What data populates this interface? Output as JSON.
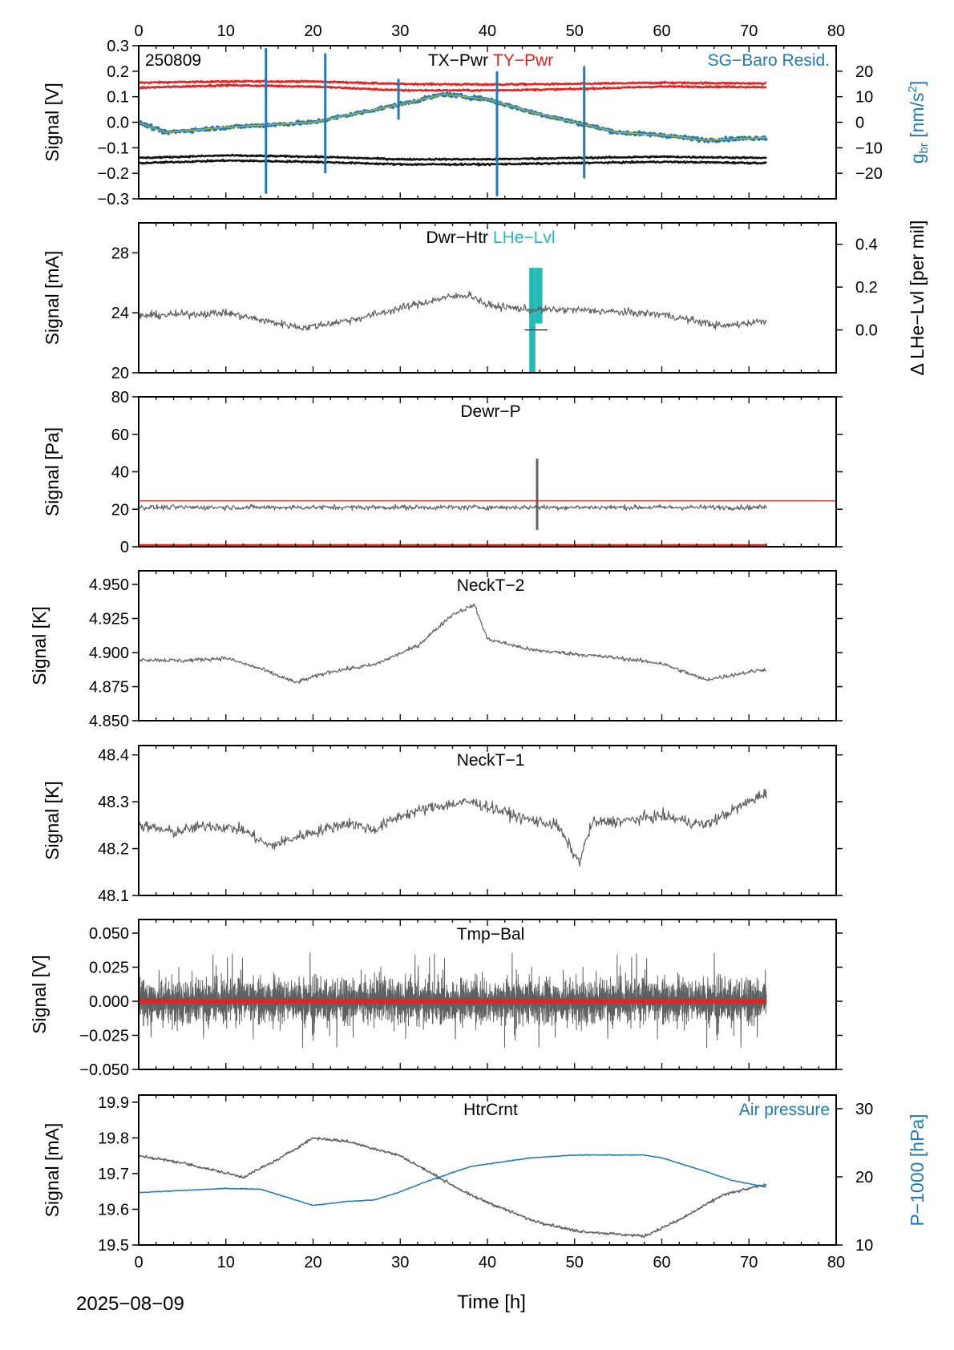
{
  "figure": {
    "date_label": "2025−08−09",
    "xlabel": "Time [h]",
    "xlim": [
      0,
      80
    ],
    "xticks": [
      0,
      10,
      20,
      30,
      40,
      50,
      60,
      70,
      80
    ]
  },
  "chart_data": [
    {
      "type": "line",
      "panel": "tx-ty-pwr",
      "corner_text": "250809",
      "titles": [
        {
          "text": "TX−Pwr",
          "color": "#000000"
        },
        {
          "text": "TY−Pwr",
          "color": "#e8201e"
        }
      ],
      "right_title": {
        "text": "SG−Baro Resid.",
        "color": "#1f7ab8"
      },
      "ylabel": "Signal [V]",
      "ylim": [
        -0.3,
        0.3
      ],
      "yticks": [
        -0.3,
        -0.2,
        -0.1,
        0.0,
        0.1,
        0.2,
        0.3
      ],
      "ytick_labels": [
        "−0.3",
        "−0.2",
        "−0.1",
        "0.0",
        "0.1",
        "0.2",
        "0.3"
      ],
      "right_axis": {
        "label_main": "g",
        "label_sub": "br",
        "label_tail": " [nm/s",
        "label_sup": "2",
        "label_end": "]",
        "color": "#1f7ab8",
        "ylim": [
          -30,
          30
        ],
        "yticks": [
          -20,
          -10,
          0,
          10,
          20
        ],
        "ytick_labels": [
          "−20",
          "−10",
          "0",
          "10",
          "20"
        ]
      },
      "series": [
        {
          "axis": "left",
          "color": "#e8201e",
          "width": 2.5,
          "noise": 0.003,
          "x": [
            0,
            10,
            20,
            30,
            40,
            50,
            60,
            72
          ],
          "y": [
            0.155,
            0.16,
            0.16,
            0.15,
            0.148,
            0.15,
            0.155,
            0.152
          ]
        },
        {
          "axis": "left",
          "color": "#e8201e",
          "width": 2.5,
          "noise": 0.003,
          "x": [
            0,
            10,
            20,
            30,
            40,
            50,
            60,
            72
          ],
          "y": [
            0.135,
            0.145,
            0.14,
            0.125,
            0.125,
            0.13,
            0.14,
            0.138
          ]
        },
        {
          "axis": "left",
          "color": "#111111",
          "width": 2.5,
          "noise": 0.003,
          "x": [
            0,
            10,
            20,
            30,
            40,
            50,
            60,
            72
          ],
          "y": [
            -0.14,
            -0.13,
            -0.135,
            -0.145,
            -0.145,
            -0.14,
            -0.135,
            -0.14
          ]
        },
        {
          "axis": "left",
          "color": "#111111",
          "width": 2.5,
          "noise": 0.003,
          "x": [
            0,
            10,
            20,
            30,
            40,
            50,
            60,
            72
          ],
          "y": [
            -0.16,
            -0.15,
            -0.155,
            -0.165,
            -0.165,
            -0.16,
            -0.155,
            -0.16
          ]
        },
        {
          "axis": "right",
          "color": "#1f7ab8",
          "width": 3.5,
          "noise": 0.7,
          "x": [
            0,
            3,
            10,
            20,
            30,
            35,
            40,
            45,
            50,
            55,
            60,
            65,
            72
          ],
          "y": [
            0,
            -4,
            -2,
            0,
            7,
            11,
            9,
            4,
            0,
            -4,
            -5,
            -7,
            -6
          ]
        },
        {
          "axis": "right",
          "color": "#b9b82e",
          "width": 1.2,
          "noise": 0.2,
          "x": [
            0,
            3,
            10,
            20,
            30,
            35,
            40,
            45,
            50,
            55,
            60,
            65,
            72
          ],
          "y": [
            0,
            -4,
            -2,
            0,
            7,
            11,
            9,
            4,
            0,
            -4,
            -5,
            -7,
            -6
          ]
        }
      ],
      "spikes": [
        {
          "axis": "right",
          "color": "#1f7ab8",
          "x": 14.6,
          "y0": -28,
          "y1": 29
        },
        {
          "axis": "right",
          "color": "#1f7ab8",
          "x": 21.4,
          "y0": -20,
          "y1": 27
        },
        {
          "axis": "right",
          "color": "#1f7ab8",
          "x": 29.8,
          "y0": 1,
          "y1": 17
        },
        {
          "axis": "right",
          "color": "#1f7ab8",
          "x": 41.1,
          "y0": -29,
          "y1": 20
        },
        {
          "axis": "right",
          "color": "#1f7ab8",
          "x": 51.1,
          "y0": -22,
          "y1": 22
        }
      ]
    },
    {
      "type": "line",
      "panel": "dwr-htr",
      "titles": [
        {
          "text": "Dwr−Htr",
          "color": "#000000"
        },
        {
          "text": "LHe−Lvl",
          "color": "#22bbb8"
        }
      ],
      "ylabel": "Signal [mA]",
      "ylim": [
        20,
        30
      ],
      "yticks": [
        20,
        24,
        28
      ],
      "ytick_labels": [
        "20",
        "24",
        "28"
      ],
      "right_axis": {
        "label": "Δ LHe−Lvl [per mil]",
        "color": "#000000",
        "ylim": [
          -0.2,
          0.5
        ],
        "yticks": [
          0.0,
          0.2,
          0.4
        ],
        "ytick_labels": [
          "0.0",
          "0.2",
          "0.4"
        ]
      },
      "series": [
        {
          "axis": "left",
          "color": "#606060",
          "width": 1.2,
          "noise": 0.25,
          "x": [
            0,
            5,
            10,
            15,
            19,
            25,
            30,
            35,
            38,
            40,
            45,
            50,
            60,
            67,
            72
          ],
          "y": [
            23.8,
            23.9,
            24.0,
            23.4,
            23.0,
            23.6,
            24.3,
            25.0,
            25.2,
            24.5,
            24.2,
            24.2,
            23.9,
            23.1,
            23.5
          ]
        }
      ],
      "bars": [
        {
          "axis": "right",
          "color": "#22bbb8",
          "x0": 44.8,
          "x1": 45.5,
          "y0": -0.3,
          "y1": 0.29
        },
        {
          "axis": "right",
          "color": "#22bbb8",
          "x0": 45.5,
          "x1": 46.3,
          "y0": 0.03,
          "y1": 0.29
        }
      ],
      "hlines": [
        {
          "axis": "right",
          "color": "#000000",
          "x0": 44.3,
          "x1": 46.9,
          "y": 0.0
        }
      ]
    },
    {
      "type": "line",
      "panel": "dewr-p",
      "titles": [
        {
          "text": "Dewr−P",
          "color": "#000000"
        }
      ],
      "ylabel": "Signal [Pa]",
      "ylim": [
        0,
        80
      ],
      "yticks": [
        0,
        20,
        40,
        60,
        80
      ],
      "ytick_labels": [
        "0",
        "20",
        "40",
        "60",
        "80"
      ],
      "series": [
        {
          "axis": "left",
          "color": "#606060",
          "width": 1.2,
          "noise": 1.3,
          "x": [
            0,
            72
          ],
          "y": [
            21,
            21
          ]
        },
        {
          "axis": "left",
          "color": "#e8201e",
          "width": 4,
          "noise": 0,
          "x": [
            0,
            72
          ],
          "y": [
            0.5,
            0.5
          ]
        },
        {
          "axis": "left",
          "color": "#111111",
          "width": 1.2,
          "noise": 0,
          "x": [
            72,
            80
          ],
          "y": [
            0,
            0
          ]
        }
      ],
      "hlines": [
        {
          "axis": "left",
          "color": "#e8201e",
          "x0": 0,
          "x1": 80,
          "y": 24.5
        }
      ],
      "spikes": [
        {
          "axis": "left",
          "color": "#606060",
          "x": 45.7,
          "y0": 9,
          "y1": 47
        }
      ]
    },
    {
      "type": "line",
      "panel": "neckt-2",
      "titles": [
        {
          "text": "NeckT−2",
          "color": "#000000"
        }
      ],
      "ylabel": "Signal [K]",
      "ylim": [
        4.85,
        4.96
      ],
      "yticks": [
        4.85,
        4.875,
        4.9,
        4.925,
        4.95
      ],
      "ytick_labels": [
        "4.850",
        "4.875",
        "4.900",
        "4.925",
        "4.950"
      ],
      "series": [
        {
          "axis": "left",
          "color": "#606060",
          "width": 1.2,
          "noise": 0.0015,
          "x": [
            0,
            5,
            10,
            14,
            18,
            22,
            27,
            32,
            36,
            38.5,
            40,
            45,
            55,
            60,
            65,
            72
          ],
          "y": [
            4.895,
            4.894,
            4.896,
            4.888,
            4.878,
            4.886,
            4.891,
            4.905,
            4.928,
            4.935,
            4.91,
            4.902,
            4.896,
            4.892,
            4.88,
            4.888
          ]
        }
      ]
    },
    {
      "type": "line",
      "panel": "neckt-1",
      "titles": [
        {
          "text": "NeckT−1",
          "color": "#000000"
        }
      ],
      "ylabel": "Signal [K]",
      "ylim": [
        48.1,
        48.42
      ],
      "yticks": [
        48.1,
        48.2,
        48.3,
        48.4
      ],
      "ytick_labels": [
        "48.1",
        "48.2",
        "48.3",
        "48.4"
      ],
      "series": [
        {
          "axis": "left",
          "color": "#606060",
          "width": 1.2,
          "noise": 0.012,
          "x": [
            0,
            4,
            8,
            12,
            15,
            19,
            24,
            27,
            30,
            34,
            38,
            40,
            44,
            48,
            50.5,
            52,
            56,
            60,
            65,
            68,
            72
          ],
          "y": [
            48.25,
            48.235,
            48.25,
            48.24,
            48.205,
            48.23,
            48.255,
            48.24,
            48.27,
            48.29,
            48.3,
            48.29,
            48.265,
            48.25,
            48.17,
            48.255,
            48.26,
            48.27,
            48.25,
            48.28,
            48.32
          ]
        }
      ]
    },
    {
      "type": "line",
      "panel": "tmp-bal",
      "titles": [
        {
          "text": "Tmp−Bal",
          "color": "#000000"
        }
      ],
      "ylabel": "Signal [V]",
      "ylim": [
        -0.05,
        0.06
      ],
      "yticks": [
        -0.05,
        -0.025,
        0.0,
        0.025,
        0.05
      ],
      "ytick_labels": [
        "−0.050",
        "−0.025",
        "0.000",
        "0.025",
        "0.050"
      ],
      "series": [
        {
          "axis": "left",
          "color": "#606060",
          "width": 1,
          "noise": 0.012,
          "dense": 5,
          "x": [
            0,
            72
          ],
          "y": [
            0,
            0
          ]
        },
        {
          "axis": "left",
          "color": "#e8201e",
          "width": 5,
          "noise": 0,
          "x": [
            0,
            72
          ],
          "y": [
            0,
            0
          ]
        }
      ]
    },
    {
      "type": "line",
      "panel": "htrcrnt",
      "titles": [
        {
          "text": "HtrCrnt",
          "color": "#000000"
        }
      ],
      "right_title": {
        "text": "Air pressure",
        "color": "#1f7ab8"
      },
      "ylabel": "Signal [mA]",
      "ylim": [
        19.5,
        19.92
      ],
      "yticks": [
        19.5,
        19.6,
        19.7,
        19.8,
        19.9
      ],
      "ytick_labels": [
        "19.5",
        "19.6",
        "19.7",
        "19.8",
        "19.9"
      ],
      "right_axis": {
        "label": "P−1000 [hPa]",
        "color": "#1f7ab8",
        "ylim": [
          10,
          32
        ],
        "yticks": [
          10,
          20,
          30
        ],
        "ytick_labels": [
          "10",
          "20",
          "30"
        ]
      },
      "series": [
        {
          "axis": "left",
          "color": "#606060",
          "width": 1.5,
          "noise": 0.004,
          "x": [
            0,
            5,
            12,
            16,
            20,
            24,
            30,
            38,
            45,
            50,
            55,
            58,
            62,
            67,
            72
          ],
          "y": [
            19.75,
            19.73,
            19.69,
            19.74,
            19.8,
            19.79,
            19.75,
            19.64,
            19.57,
            19.54,
            19.53,
            19.525,
            19.57,
            19.64,
            19.67
          ]
        },
        {
          "axis": "right",
          "color": "#1f7ab8",
          "width": 1.5,
          "noise": 0.06,
          "x": [
            0,
            5,
            10,
            14,
            18,
            20,
            24,
            27,
            30,
            33,
            38,
            45,
            50,
            58,
            60,
            65,
            68,
            72
          ],
          "y": [
            17.7,
            18.0,
            18.3,
            18.2,
            16.6,
            15.8,
            16.4,
            16.6,
            17.8,
            19.3,
            21.5,
            22.8,
            23.2,
            23.2,
            22.8,
            20.8,
            19.5,
            18.5
          ]
        }
      ]
    }
  ]
}
